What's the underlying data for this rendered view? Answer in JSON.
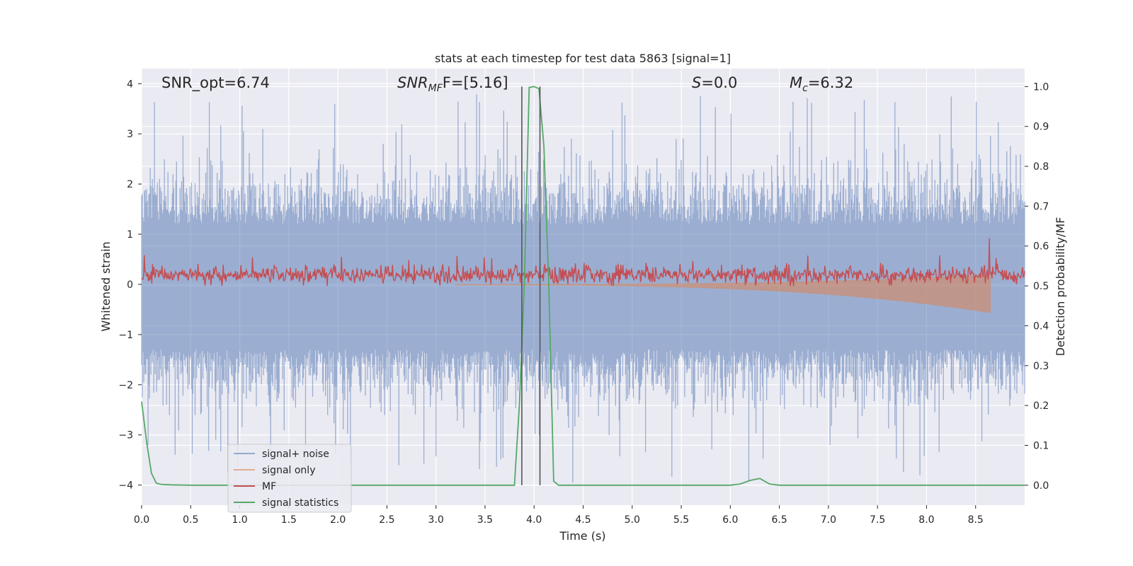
{
  "chart_data": {
    "type": "line",
    "title": "stats at each timestep for test data 5863 [signal=1]",
    "xlabel": "Time (s)",
    "ylabel_left": "Whitened strain",
    "ylabel_right": "Detection probability/MF",
    "xlim": [
      0.0,
      9.0
    ],
    "ylim_left": [
      -4.4,
      4.3
    ],
    "ylim_right": [
      -0.05,
      1.045
    ],
    "x_ticks": [
      "0.0",
      "0.5",
      "1.0",
      "1.5",
      "2.0",
      "2.5",
      "3.0",
      "3.5",
      "4.0",
      "4.5",
      "5.0",
      "5.5",
      "6.0",
      "6.5",
      "7.0",
      "7.5",
      "8.0",
      "8.5"
    ],
    "y_left_ticks": [
      "4",
      "3",
      "2",
      "1",
      "0",
      "−1",
      "−2",
      "−3",
      "−4"
    ],
    "y_right_ticks": [
      "1.0",
      "0.9",
      "0.8",
      "0.7",
      "0.6",
      "0.5",
      "0.4",
      "0.3",
      "0.2",
      "0.1",
      "0.0"
    ],
    "annotations": {
      "snr_opt": "SNR_opt=6.74",
      "snr_mf_main": "SNR",
      "snr_mf_sub": "MF",
      "snr_mf_rest": "F=[5.16]",
      "s_main": "S",
      "s_rest": "=0.0",
      "mc_main": "M",
      "mc_sub": "c",
      "mc_rest": "=6.32"
    },
    "vertical_lines_s": [
      3.875,
      4.06
    ],
    "grid": true,
    "legend_position": "lower-left",
    "series": [
      {
        "name": "signal+ noise",
        "color": "#4c72b0",
        "axis": "left",
        "description_kind": "noise envelope",
        "typical_range": [
          -1.8,
          1.6
        ],
        "spikes_max": 3.8,
        "spikes_min": -4.0
      },
      {
        "name": "signal only",
        "color": "#dd8452",
        "axis": "left",
        "description_kind": "chirp",
        "end_time": 8.65,
        "max_amplitude_end": -0.6
      },
      {
        "name": "MF",
        "color": "#c44e52",
        "axis": "right",
        "description_kind": "noisy band",
        "typical_range": [
          0.5,
          0.56
        ],
        "max": 0.62
      },
      {
        "name": "signal statistics",
        "color": "#55a868",
        "axis": "right",
        "x": [
          0.0,
          0.05,
          0.1,
          0.15,
          0.2,
          0.3,
          0.5,
          1.0,
          2.0,
          3.0,
          3.5,
          3.8,
          3.85,
          3.9,
          3.95,
          4.0,
          4.05,
          4.1,
          4.15,
          4.2,
          4.25,
          4.3,
          5.0,
          6.0,
          6.1,
          6.2,
          6.3,
          6.35,
          6.4,
          6.5,
          7.0,
          8.0,
          9.0
        ],
        "y": [
          0.21,
          0.11,
          0.03,
          0.005,
          0.002,
          0.001,
          0.0,
          0.0,
          0.0,
          0.0,
          0.0,
          0.0,
          0.2,
          0.5,
          0.998,
          1.0,
          0.995,
          0.85,
          0.5,
          0.01,
          0.0,
          0.0,
          0.0,
          0.0,
          0.003,
          0.012,
          0.017,
          0.01,
          0.003,
          0.0,
          0.0,
          0.0,
          0.0
        ]
      }
    ]
  }
}
